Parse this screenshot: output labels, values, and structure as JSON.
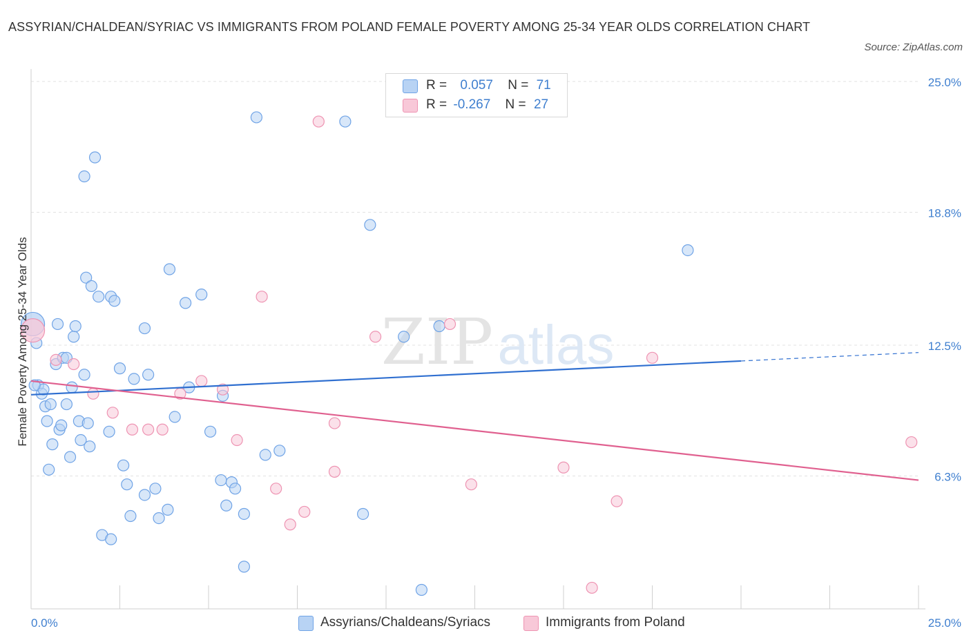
{
  "title": "ASSYRIAN/CHALDEAN/SYRIAC VS IMMIGRANTS FROM POLAND FEMALE POVERTY AMONG 25-34 YEAR OLDS CORRELATION CHART",
  "source": "Source: ZipAtlas.com",
  "watermark": {
    "zip": "ZIP",
    "atlas": "atlas"
  },
  "legend": {
    "rows": [
      {
        "r_label": "R =",
        "r_value": "0.057",
        "n_label": "N =",
        "n_value": "71",
        "color": "#b8d3f4",
        "border": "#6fa3e6"
      },
      {
        "r_label": "R =",
        "r_value": "-0.267",
        "n_label": "N =",
        "n_value": "27",
        "color": "#f8c8d8",
        "border": "#ee93b2"
      }
    ]
  },
  "chart_data": {
    "type": "scatter",
    "title": "ASSYRIAN/CHALDEAN/SYRIAC VS IMMIGRANTS FROM POLAND FEMALE POVERTY AMONG 25-34 YEAR OLDS CORRELATION CHART",
    "xlabel": "",
    "ylabel": "Female Poverty Among 25-34 Year Olds",
    "xlim": [
      0,
      25
    ],
    "ylim": [
      0,
      25
    ],
    "x_tick_labels": [
      "0.0%",
      "25.0%"
    ],
    "y_ticks": [
      6.3,
      12.5,
      18.8,
      25.0
    ],
    "y_tick_labels": [
      "6.3%",
      "12.5%",
      "18.8%",
      "25.0%"
    ],
    "grid": true,
    "series": [
      {
        "name": "Assyrians/Chaldeans/Syriacs",
        "color": "#6fa3e6",
        "fill": "#b8d3f4",
        "trend": {
          "x": [
            0,
            20
          ],
          "y": [
            10.15,
            11.75
          ],
          "dashed_to": [
            25,
            12.15
          ],
          "color": "#2f6fd0"
        },
        "points": [
          [
            0.05,
            13.5
          ],
          [
            0.15,
            12.6
          ],
          [
            0.2,
            10.6
          ],
          [
            0.3,
            10.2
          ],
          [
            0.35,
            10.4
          ],
          [
            0.4,
            9.6
          ],
          [
            0.45,
            8.9
          ],
          [
            0.5,
            6.6
          ],
          [
            0.55,
            9.7
          ],
          [
            0.6,
            7.8
          ],
          [
            0.7,
            11.6
          ],
          [
            0.75,
            13.5
          ],
          [
            0.8,
            8.5
          ],
          [
            0.85,
            8.7
          ],
          [
            0.9,
            11.9
          ],
          [
            1.0,
            11.9
          ],
          [
            1.0,
            9.7
          ],
          [
            1.1,
            7.2
          ],
          [
            1.15,
            10.5
          ],
          [
            1.2,
            12.9
          ],
          [
            1.25,
            13.4
          ],
          [
            1.35,
            8.9
          ],
          [
            1.4,
            8.0
          ],
          [
            1.5,
            11.1
          ],
          [
            1.55,
            15.7
          ],
          [
            1.6,
            8.8
          ],
          [
            1.65,
            7.7
          ],
          [
            1.7,
            15.3
          ],
          [
            1.8,
            21.4
          ],
          [
            1.9,
            14.8
          ],
          [
            1.5,
            20.5
          ],
          [
            2.0,
            3.5
          ],
          [
            2.2,
            8.4
          ],
          [
            2.25,
            3.3
          ],
          [
            2.25,
            14.8
          ],
          [
            2.35,
            14.6
          ],
          [
            2.5,
            11.4
          ],
          [
            2.6,
            6.8
          ],
          [
            2.7,
            5.9
          ],
          [
            2.8,
            4.4
          ],
          [
            2.9,
            10.9
          ],
          [
            3.2,
            13.3
          ],
          [
            3.2,
            5.4
          ],
          [
            3.3,
            11.1
          ],
          [
            3.5,
            5.7
          ],
          [
            3.6,
            4.3
          ],
          [
            3.85,
            4.7
          ],
          [
            3.9,
            16.1
          ],
          [
            4.05,
            9.1
          ],
          [
            4.35,
            14.5
          ],
          [
            4.45,
            10.5
          ],
          [
            4.8,
            14.9
          ],
          [
            5.05,
            8.4
          ],
          [
            5.35,
            6.1
          ],
          [
            5.4,
            10.1
          ],
          [
            5.5,
            4.9
          ],
          [
            5.65,
            6.0
          ],
          [
            5.75,
            5.7
          ],
          [
            6.0,
            4.5
          ],
          [
            6.0,
            2.0
          ],
          [
            6.35,
            23.3
          ],
          [
            6.6,
            7.3
          ],
          [
            7.0,
            7.5
          ],
          [
            8.85,
            23.1
          ],
          [
            9.35,
            4.5
          ],
          [
            9.55,
            18.2
          ],
          [
            10.5,
            12.9
          ],
          [
            11.0,
            0.9
          ],
          [
            11.5,
            13.4
          ],
          [
            18.5,
            17.0
          ],
          [
            0.1,
            10.6
          ]
        ]
      },
      {
        "name": "Immigrants from Poland",
        "color": "#ee93b2",
        "fill": "#f8c8d8",
        "trend": {
          "x": [
            0,
            25
          ],
          "y": [
            10.8,
            6.1
          ],
          "color": "#e0608f"
        },
        "points": [
          [
            0.05,
            13.2
          ],
          [
            0.7,
            11.8
          ],
          [
            1.2,
            11.6
          ],
          [
            1.75,
            10.2
          ],
          [
            2.3,
            9.3
          ],
          [
            2.85,
            8.5
          ],
          [
            3.3,
            8.5
          ],
          [
            3.7,
            8.5
          ],
          [
            4.2,
            10.2
          ],
          [
            4.8,
            10.8
          ],
          [
            5.4,
            10.4
          ],
          [
            5.8,
            8.0
          ],
          [
            6.5,
            14.8
          ],
          [
            6.9,
            5.7
          ],
          [
            7.3,
            4.0
          ],
          [
            7.7,
            4.6
          ],
          [
            8.1,
            23.1
          ],
          [
            8.55,
            8.8
          ],
          [
            8.55,
            6.5
          ],
          [
            9.7,
            12.9
          ],
          [
            11.8,
            13.5
          ],
          [
            12.4,
            5.9
          ],
          [
            15.0,
            6.7
          ],
          [
            15.8,
            1.0
          ],
          [
            16.5,
            5.1
          ],
          [
            17.5,
            11.9
          ],
          [
            24.8,
            7.9
          ]
        ]
      }
    ]
  },
  "bottom_legend": [
    {
      "label": "Assyrians/Chaldeans/Syriacs",
      "color": "#b8d3f4",
      "border": "#6fa3e6"
    },
    {
      "label": "Immigrants from Poland",
      "color": "#f8c8d8",
      "border": "#ee93b2"
    }
  ]
}
